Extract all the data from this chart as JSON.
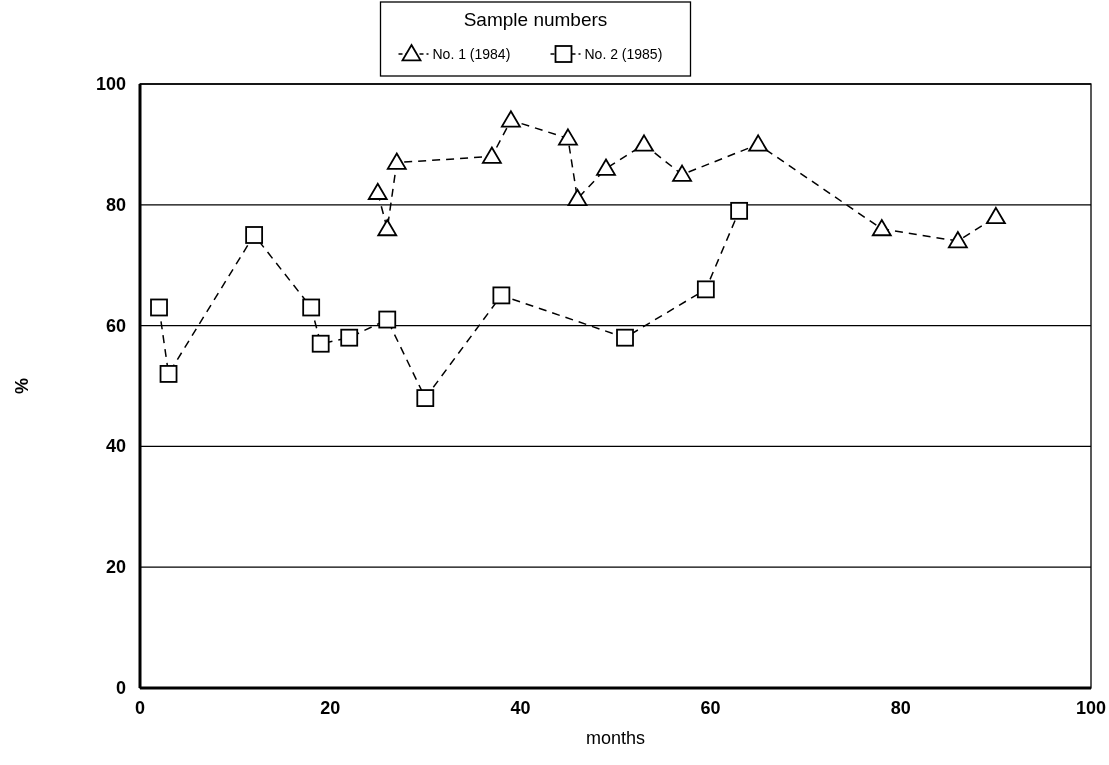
{
  "chart_data": {
    "type": "line",
    "xlabel": "months",
    "ylabel": "%",
    "legend_title": "Sample numbers",
    "xlim": [
      0,
      100
    ],
    "xticks": [
      0,
      20,
      40,
      60,
      80,
      100
    ],
    "ylim": [
      0,
      100
    ],
    "yticks": [
      0,
      20,
      40,
      60,
      80,
      100
    ],
    "grid": "y",
    "legend": "top",
    "line_style": "dashed",
    "series": [
      {
        "name": "No. 1 (1984)",
        "color": "#000000",
        "marker": "triangle",
        "x": [
          25,
          26,
          27,
          37,
          39,
          45,
          46,
          49,
          53,
          57,
          65,
          78,
          86,
          90
        ],
        "values": [
          82,
          76,
          87,
          88,
          94,
          91,
          81,
          86,
          90,
          85,
          90,
          76,
          74,
          78
        ]
      },
      {
        "name": "No. 2 (1985)",
        "color": "#000000",
        "marker": "square",
        "x": [
          2,
          3,
          12,
          18,
          19,
          22,
          26,
          30,
          38,
          51,
          59.5,
          63
        ],
        "values": [
          63,
          52,
          75,
          63,
          57,
          58,
          61,
          48,
          65,
          58,
          66,
          79
        ]
      }
    ]
  }
}
